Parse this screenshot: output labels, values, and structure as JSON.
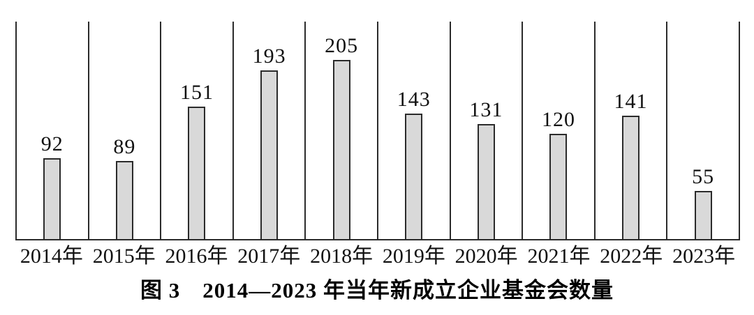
{
  "chart_data": {
    "type": "bar",
    "title": "图 3　2014—2023 年当年新成立企业基金会数量",
    "categories": [
      "2014年",
      "2015年",
      "2016年",
      "2017年",
      "2018年",
      "2019年",
      "2020年",
      "2021年",
      "2022年",
      "2023年"
    ],
    "values": [
      92,
      89,
      151,
      193,
      205,
      143,
      131,
      120,
      141,
      55
    ],
    "xlabel": "",
    "ylabel": "",
    "ylim": [
      0,
      250
    ],
    "grid": "vertical-column-separators",
    "legend": "none",
    "colors": {
      "bar_fill": "#d9d9d9",
      "bar_border": "#2b2b2b",
      "line": "#2b2b2b",
      "text": "#111111",
      "background": "#ffffff"
    }
  }
}
